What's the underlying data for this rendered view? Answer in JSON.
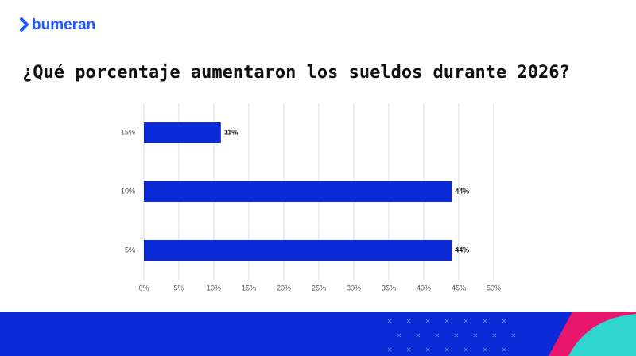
{
  "logo": "bumeran",
  "chart_data": {
    "type": "bar",
    "orientation": "horizontal",
    "title": "¿Qué porcentaje aumentaron los sueldos durante 2026?",
    "categories": [
      "15%",
      "10%",
      "5%"
    ],
    "values": [
      11,
      44,
      44
    ],
    "value_labels": [
      "11%",
      "44%",
      "44%"
    ],
    "color": "#0a2bd6",
    "xlim": [
      0,
      50
    ],
    "xticks": [
      {
        "value": 0,
        "label": "0%"
      },
      {
        "value": 5,
        "label": "5%"
      },
      {
        "value": 10,
        "label": "10%"
      },
      {
        "value": 15,
        "label": "15%"
      },
      {
        "value": 20,
        "label": "20%"
      },
      {
        "value": 25,
        "label": "25%"
      },
      {
        "value": 30,
        "label": "30%"
      },
      {
        "value": 35,
        "label": "35%"
      },
      {
        "value": 40,
        "label": "40%"
      },
      {
        "value": 45,
        "label": "45%"
      },
      {
        "value": 50,
        "label": "50%"
      }
    ],
    "grid": true
  }
}
